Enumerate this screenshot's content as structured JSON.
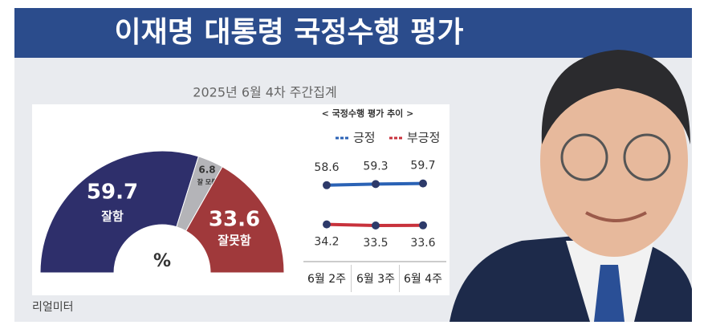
{
  "title": "이재명 대통령 국정수행 평가",
  "subtitle": "2025년 6월 4차 주간집계",
  "source": "리얼미터",
  "chart_data": [
    {
      "type": "half-donut",
      "unit": "%",
      "categories": [
        "잘함",
        "잘 모름",
        "잘못함"
      ],
      "values": [
        59.7,
        6.8,
        33.6
      ],
      "colors": [
        "#2e2f6b",
        "#b4b4b8",
        "#a0393b"
      ]
    },
    {
      "type": "line",
      "title": "< 국정수행 평가 추이 >",
      "categories": [
        "6월 2주",
        "6월 3주",
        "6월 4주"
      ],
      "ylim": [
        0,
        100
      ],
      "series": [
        {
          "name": "긍정",
          "color": "#2a62b5",
          "values": [
            58.6,
            59.3,
            59.7
          ]
        },
        {
          "name": "부긍정",
          "color": "#c8323c",
          "values": [
            34.2,
            33.5,
            33.6
          ]
        }
      ]
    }
  ]
}
